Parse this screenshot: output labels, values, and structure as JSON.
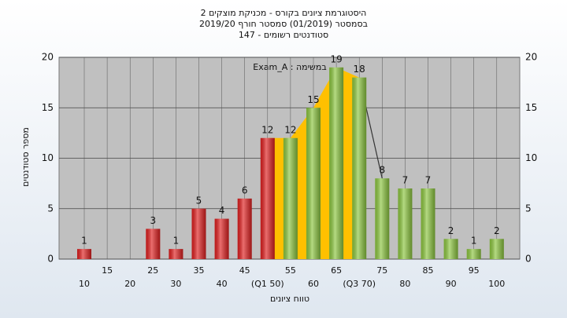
{
  "chart_data": {
    "type": "bar",
    "title": "היסטוגרמת ציונים בקורס - מכניקת מוצקים 2",
    "subtitle": "בסמסטר (01/2019) סמסטר חורף 2019/20",
    "subtitle2": "סטודנטים רשומים - 147",
    "annotation": "Exam_A : במשימה",
    "x_label": "טווח ציונים",
    "y_label": "מספר סטודנטים",
    "categories": [
      "10",
      "15",
      "20",
      "25",
      "30",
      "35",
      "40",
      "45",
      "(Q1 50)",
      "55",
      "60",
      "65",
      "(Q3 70)",
      "75",
      "80",
      "85",
      "90",
      "95",
      "100"
    ],
    "values": [
      1,
      0,
      0,
      3,
      1,
      5,
      4,
      6,
      12,
      12,
      15,
      19,
      18,
      8,
      7,
      7,
      2,
      1,
      2
    ],
    "colors": [
      "#e02020",
      "#e02020",
      "#e02020",
      "#e02020",
      "#e02020",
      "#e02020",
      "#e02020",
      "#e02020",
      "#e02020",
      "#8cc63f",
      "#8cc63f",
      "#8cc63f",
      "#8cc63f",
      "#8cc63f",
      "#8cc63f",
      "#8cc63f",
      "#8cc63f",
      "#8cc63f",
      "#8cc63f"
    ],
    "area_color": "#ffc000",
    "ylim": [
      0,
      20
    ],
    "yticks": [
      0,
      5,
      10,
      15,
      20
    ],
    "grid": true
  }
}
